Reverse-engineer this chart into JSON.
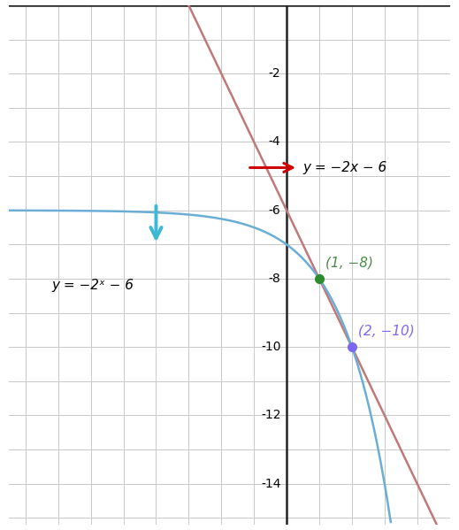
{
  "xlim": [
    -8.5,
    5.0
  ],
  "ylim": [
    -15.2,
    -0.5
  ],
  "ytick_vals": [
    -14,
    -12,
    -10,
    -8,
    -6,
    -4,
    -2
  ],
  "grid_color": "#c8c8c8",
  "background_color": "#ffffff",
  "linear_color": "#c07878",
  "exponential_color": "#6aaed6",
  "point1": [
    1,
    -8
  ],
  "point1_color": "#2e8b2e",
  "point1_label": "(1, −8)",
  "point2": [
    2,
    -10
  ],
  "point2_color": "#7B68EE",
  "point2_label": "(2, −10)",
  "linear_label": "y = −2x − 6",
  "exponential_label": "y = −2ˣ − 6",
  "arrow1_color": "#cc0000",
  "arrow2_color": "#3ab8d4",
  "axis_color": "#222222"
}
